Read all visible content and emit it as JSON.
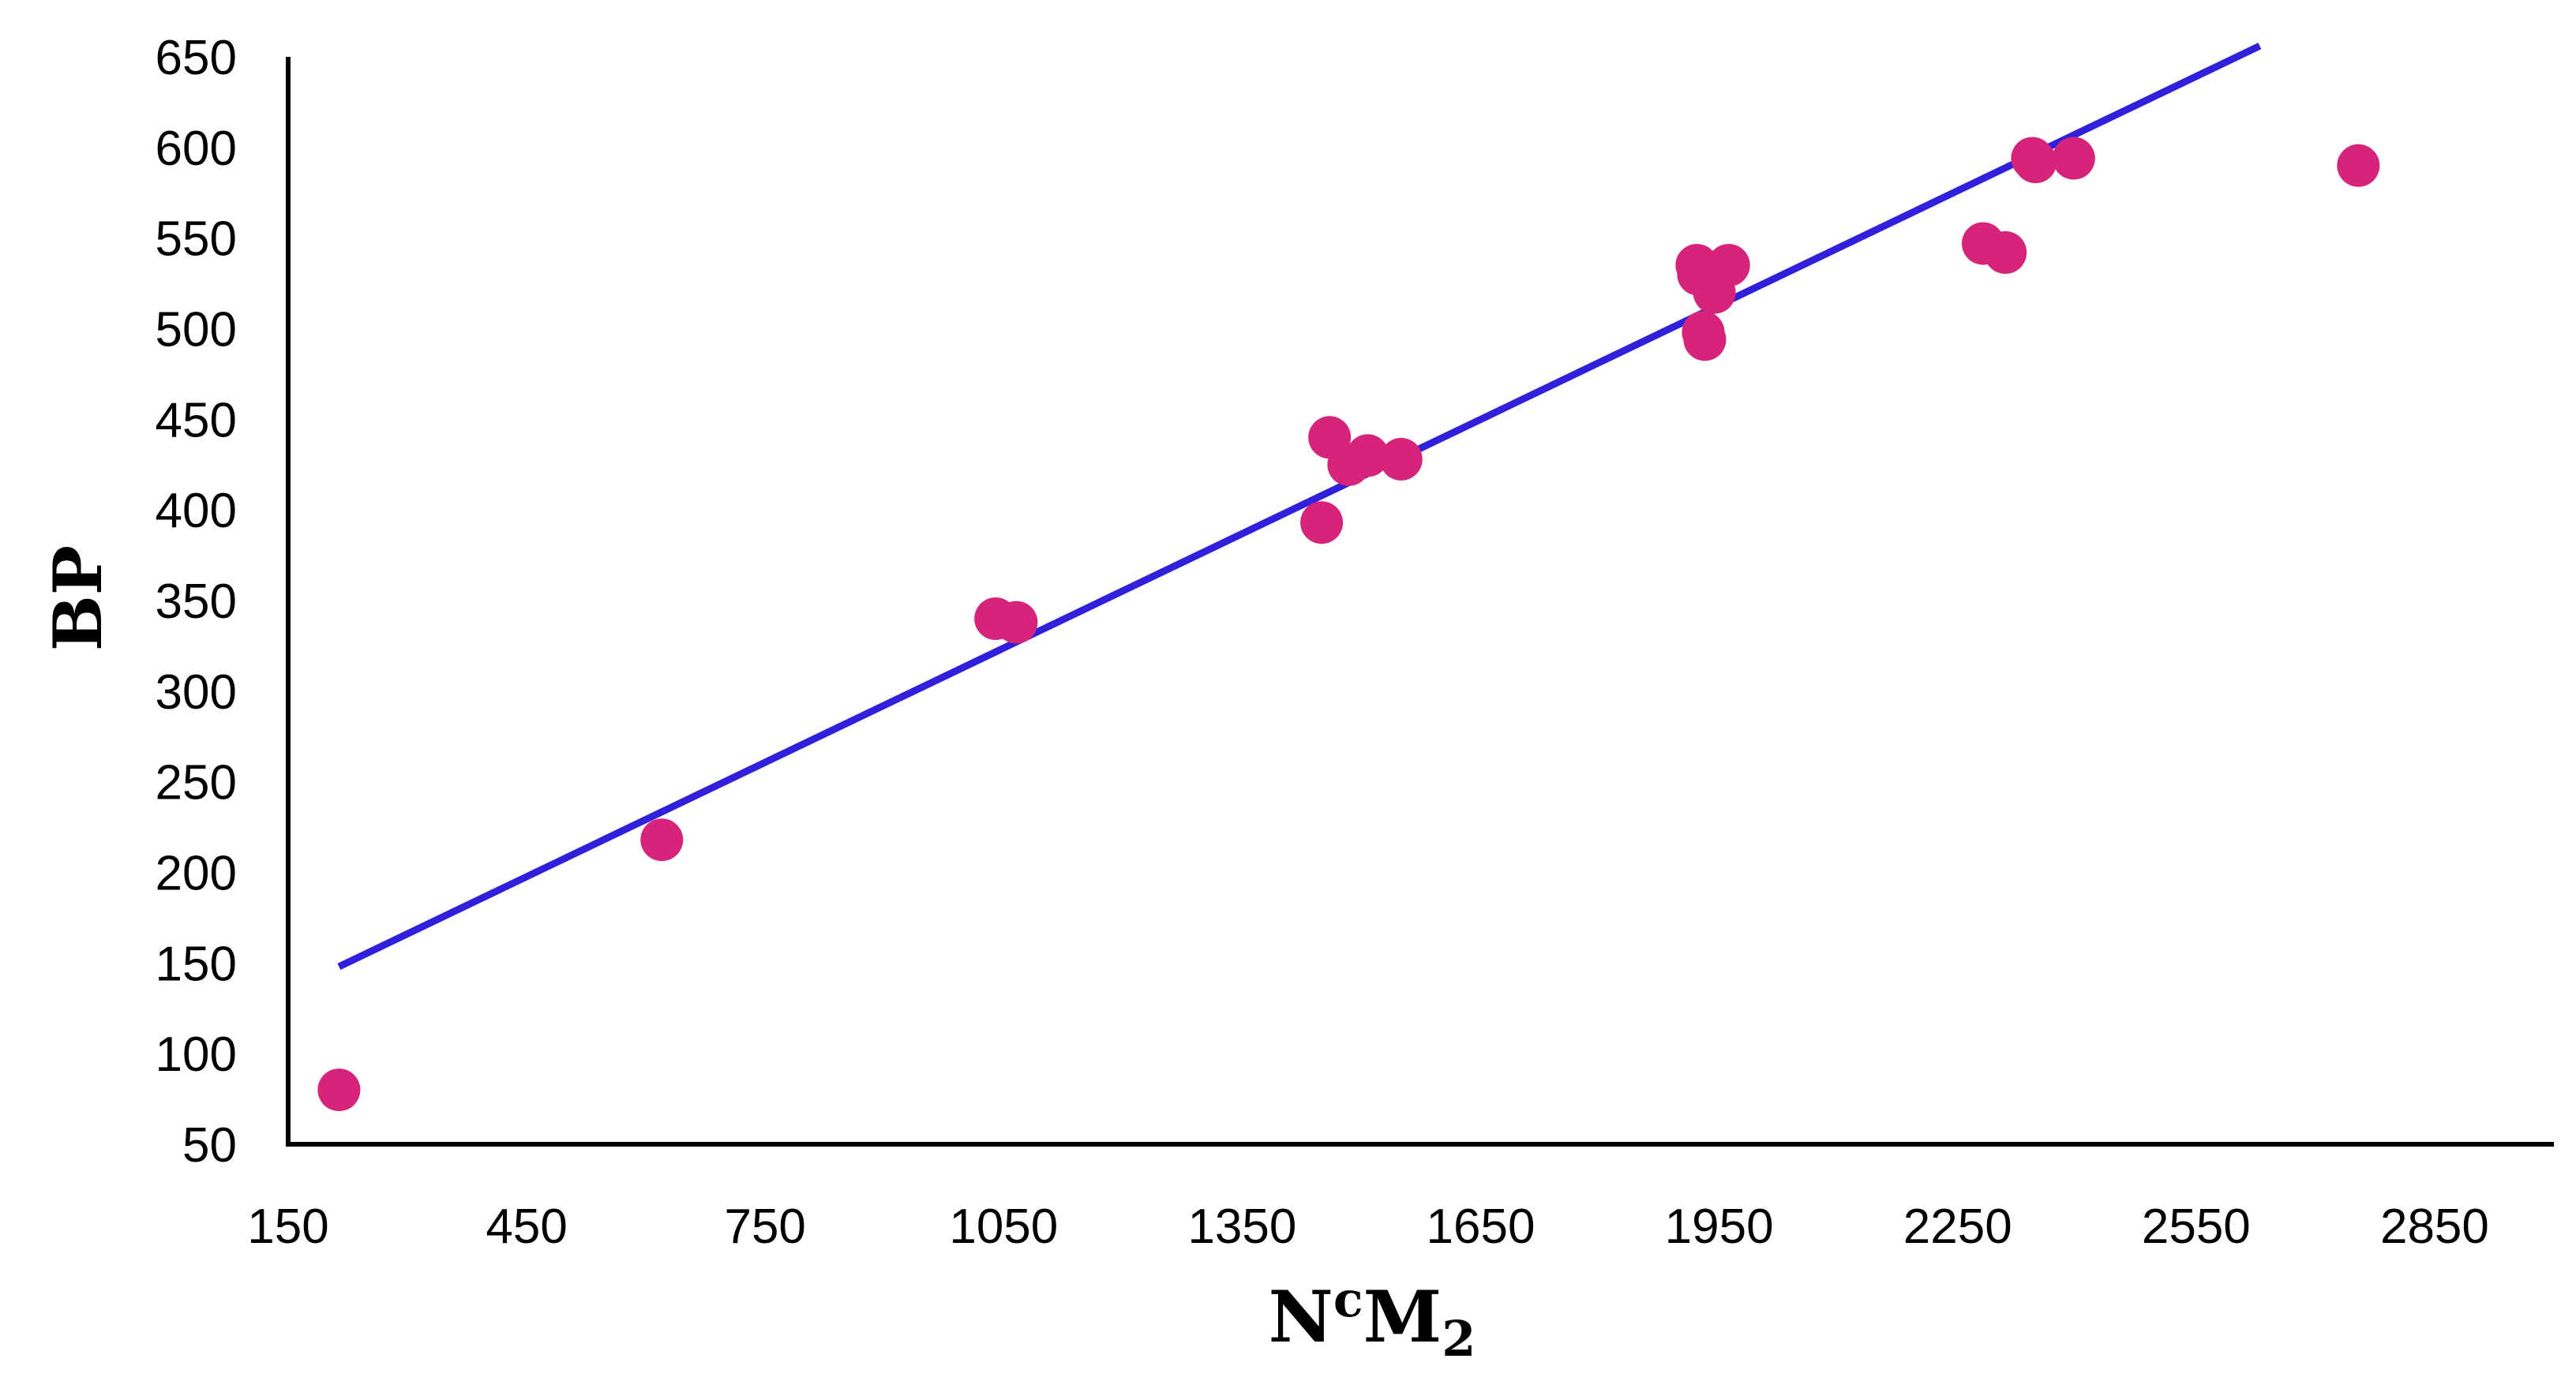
{
  "chart_data": {
    "type": "scatter",
    "title": "",
    "xlabel": {
      "base": "N",
      "sup": "c",
      "main": "M",
      "sub": "2"
    },
    "ylabel": "BP",
    "xlim": [
      150,
      3000
    ],
    "ylim": [
      50,
      650
    ],
    "xticks": [
      150,
      450,
      750,
      1050,
      1350,
      1650,
      1950,
      2250,
      2550,
      2850
    ],
    "yticks": [
      50,
      100,
      150,
      200,
      250,
      300,
      350,
      400,
      450,
      500,
      550,
      600,
      650
    ],
    "grid": false,
    "legend": "none",
    "series": [
      {
        "type": "scatter",
        "color": "#d6247a",
        "points": [
          [
            214,
            80
          ],
          [
            620,
            218
          ],
          [
            1040,
            340
          ],
          [
            1066,
            338
          ],
          [
            1450,
            393
          ],
          [
            1460,
            440
          ],
          [
            1484,
            425
          ],
          [
            1508,
            430
          ],
          [
            1550,
            428
          ],
          [
            1922,
            535
          ],
          [
            1924,
            530
          ],
          [
            1930,
            498
          ],
          [
            1932,
            494
          ],
          [
            1944,
            520
          ],
          [
            1962,
            535
          ],
          [
            2282,
            547
          ],
          [
            2310,
            542
          ],
          [
            2344,
            594
          ],
          [
            2348,
            592
          ],
          [
            2396,
            594
          ],
          [
            2754,
            590
          ]
        ]
      },
      {
        "type": "line",
        "color": "#3020dc",
        "points": [
          [
            214,
            148
          ],
          [
            2630,
            656
          ]
        ]
      }
    ]
  }
}
